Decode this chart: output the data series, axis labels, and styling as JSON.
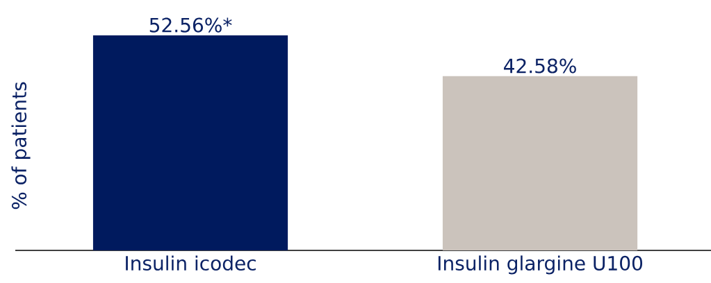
{
  "chart_data": {
    "type": "bar",
    "ylabel": "% of patients",
    "categories": [
      "Insulin icodec",
      "Insulin glargine U100"
    ],
    "values": [
      52.56,
      42.58
    ],
    "colors": [
      "#001a5e",
      "#cbc3bc"
    ],
    "value_labels": [
      "52.56%*",
      "42.58%"
    ]
  }
}
